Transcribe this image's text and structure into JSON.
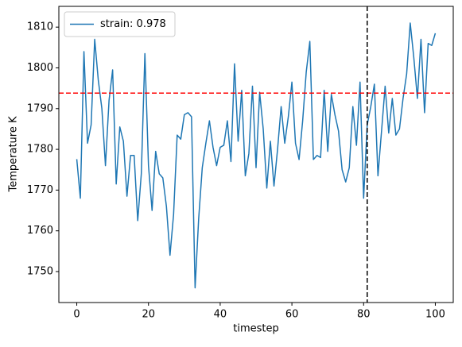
{
  "chart_data": {
    "type": "line",
    "x_label": "timestep",
    "y_label": "Temperature K",
    "x": [
      0,
      1,
      2,
      3,
      4,
      5,
      6,
      7,
      8,
      9,
      10,
      11,
      12,
      13,
      14,
      15,
      16,
      17,
      18,
      19,
      20,
      21,
      22,
      23,
      24,
      25,
      26,
      27,
      28,
      29,
      30,
      31,
      32,
      33,
      34,
      35,
      36,
      37,
      38,
      39,
      40,
      41,
      42,
      43,
      44,
      45,
      46,
      47,
      48,
      49,
      50,
      51,
      52,
      53,
      54,
      55,
      56,
      57,
      58,
      59,
      60,
      61,
      62,
      63,
      64,
      65,
      66,
      67,
      68,
      69,
      70,
      71,
      72,
      73,
      74,
      75,
      76,
      77,
      78,
      79,
      80,
      81,
      82,
      83,
      84,
      85,
      86,
      87,
      88,
      89,
      90,
      91,
      92,
      93,
      94,
      95,
      96,
      97,
      98,
      99,
      100
    ],
    "series": [
      {
        "name": "strain: 0.978",
        "color": "#1f77b4",
        "values": [
          1777.6,
          1768,
          1804,
          1781.5,
          1786,
          1807,
          1797,
          1790,
          1776,
          1792,
          1799.5,
          1771.5,
          1785.5,
          1782,
          1768.5,
          1778.5,
          1778.5,
          1762.5,
          1774,
          1803.5,
          1776,
          1765,
          1779.5,
          1774,
          1773,
          1766,
          1754,
          1764,
          1783.5,
          1782.5,
          1788.5,
          1789,
          1788,
          1746,
          1763,
          1775.5,
          1781.5,
          1787,
          1780.5,
          1776,
          1780.5,
          1781,
          1787,
          1777,
          1801,
          1782,
          1794.5,
          1773.5,
          1779,
          1795.5,
          1775.5,
          1794,
          1785,
          1770.5,
          1782,
          1771,
          1780,
          1790.5,
          1781.5,
          1788,
          1796.5,
          1781.5,
          1777.5,
          1787,
          1799,
          1806.5,
          1777.5,
          1778.5,
          1778,
          1794.5,
          1779.5,
          1793.5,
          1788.5,
          1784.5,
          1775,
          1772,
          1775.5,
          1790.5,
          1781,
          1796.5,
          1768,
          1786,
          1790.5,
          1796,
          1773.5,
          1784.5,
          1795.5,
          1784,
          1792.5,
          1783.5,
          1785,
          1792.5,
          1798.5,
          1811,
          1802.5,
          1792.5,
          1807,
          1789,
          1806,
          1805.5,
          1808.5
        ]
      }
    ],
    "hline": {
      "value": 1793.8,
      "color": "#ff0000"
    },
    "vline": {
      "value": 81,
      "color": "#000000"
    },
    "xlim": [
      -5,
      105
    ],
    "ylim": [
      1742.4,
      1815.1
    ],
    "xticks": [
      0,
      20,
      40,
      60,
      80,
      100
    ],
    "yticks": [
      1750,
      1760,
      1770,
      1780,
      1790,
      1800,
      1810
    ],
    "legend": "upper-left"
  }
}
